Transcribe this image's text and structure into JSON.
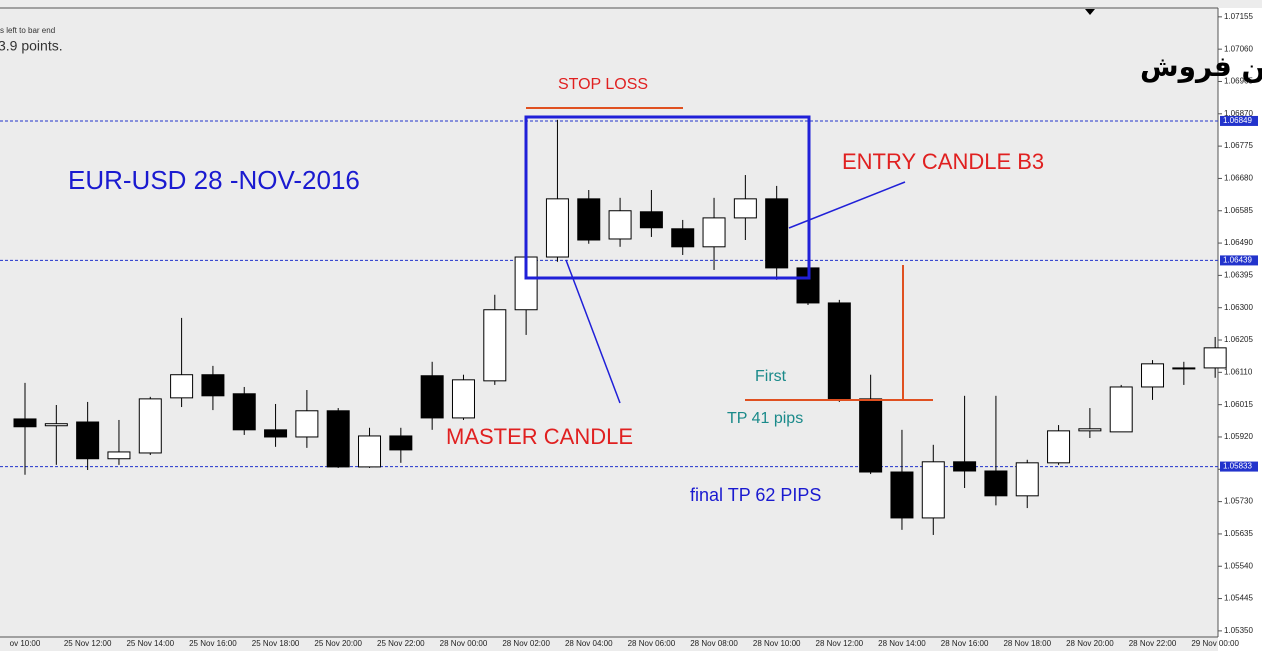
{
  "chart_data": {
    "type": "candlestick",
    "title": "یورو دلار- پوزیشن فروش",
    "annotations": {
      "info_small": "s left to bar end",
      "info_points": "3.9 points.",
      "pair": "EUR-USD 28 -NOV-2016",
      "stop_loss": "STOP LOSS",
      "entry": "ENTRY CANDLE B3",
      "master": "MASTER CANDLE",
      "first": "First",
      "tp1": "TP 41 pips",
      "tp2": "final TP 62 PIPS"
    },
    "categories": [
      "ov 10:00",
      null,
      "25 Nov 12:00",
      null,
      "25 Nov 14:00",
      null,
      "25 Nov 16:00",
      null,
      "25 Nov 18:00",
      null,
      "25 Nov 20:00",
      null,
      "25 Nov 22:00",
      null,
      "28 Nov 00:00",
      null,
      "28 Nov 02:00",
      null,
      "28 Nov 04:00",
      null,
      "28 Nov 06:00",
      null,
      "28 Nov 08:00",
      null,
      "28 Nov 10:00",
      null,
      "28 Nov 12:00",
      null,
      "28 Nov 14:00",
      null,
      "28 Nov 16:00",
      null,
      "28 Nov 18:00",
      null,
      "28 Nov 20:00",
      null,
      "28 Nov 22:00",
      null,
      "29 Nov 00:00"
    ],
    "open": [
      1.05973,
      1.05953,
      1.05964,
      1.05856,
      1.05873,
      1.06035,
      1.06103,
      1.06047,
      1.05941,
      1.0592,
      1.05997,
      1.05832,
      1.05923,
      1.061,
      1.05976,
      1.06085,
      1.06294,
      1.06449,
      1.0662,
      1.06502,
      1.06582,
      1.06532,
      1.06479,
      1.06564,
      1.0662,
      1.06417,
      1.06314,
      1.06032,
      1.05817,
      1.05682,
      1.05847,
      1.0582,
      1.05747,
      1.05844,
      1.05938,
      1.05935,
      1.06067,
      1.06123,
      1.06123
    ],
    "high": [
      1.06079,
      1.06014,
      1.06023,
      1.0597,
      1.06038,
      1.0627,
      1.06129,
      1.06067,
      1.06017,
      1.06058,
      1.06005,
      1.05947,
      1.05947,
      1.06141,
      1.06103,
      1.06338,
      1.0647,
      1.06852,
      1.06646,
      1.06623,
      1.06646,
      1.06558,
      1.06623,
      1.0669,
      1.06658,
      1.06423,
      1.06323,
      1.06103,
      1.05941,
      1.05897,
      1.06041,
      1.06041,
      1.05853,
      1.05955,
      1.06005,
      1.06073,
      1.06146,
      1.06141,
      1.06214
    ],
    "low": [
      1.05809,
      1.05838,
      1.05823,
      1.05838,
      1.05867,
      1.06008,
      1.05999,
      1.05926,
      1.05891,
      1.05888,
      1.05829,
      1.05829,
      1.05844,
      1.05941,
      1.0597,
      1.06073,
      1.0622,
      1.06435,
      1.06488,
      1.06479,
      1.06508,
      1.06455,
      1.06411,
      1.06499,
      1.06382,
      1.06308,
      1.06023,
      1.05811,
      1.05647,
      1.05632,
      1.0577,
      1.05719,
      1.05711,
      1.05838,
      1.05917,
      1.05935,
      1.06029,
      1.06073,
      1.06094
    ],
    "close": [
      1.0595,
      1.05959,
      1.05856,
      1.05876,
      1.06032,
      1.06103,
      1.06041,
      1.05941,
      1.0592,
      1.05997,
      1.05832,
      1.05923,
      1.05882,
      1.05976,
      1.06088,
      1.06294,
      1.06449,
      1.0662,
      1.06499,
      1.06585,
      1.06535,
      1.06479,
      1.06564,
      1.0662,
      1.06417,
      1.06314,
      1.06032,
      1.05817,
      1.05682,
      1.05847,
      1.0582,
      1.05747,
      1.05844,
      1.05938,
      1.05944,
      1.06067,
      1.06135,
      1.0612,
      1.06182
    ],
    "up_color": "#ffffff",
    "down_color": "#000000",
    "price_lines": [
      1.06849,
      1.06439,
      1.05833
    ],
    "price_line_color": "#2233cc",
    "ylim": [
      1.05332,
      1.07181
    ],
    "yticks": [
      1.07155,
      {
        "value": 1.0706,
        "label": "1.07060"
      },
      1.06965,
      {
        "value": 1.0687,
        "label": "1.06870"
      },
      1.06775,
      {
        "value": 1.0668,
        "label": "1.06680"
      },
      1.06585,
      {
        "value": 1.0649,
        "label": "1.06490"
      },
      1.06395,
      {
        "value": 1.063,
        "label": "1.06300"
      },
      1.06205,
      {
        "value": 1.0611,
        "label": "1.06110"
      },
      1.06015,
      {
        "value": 1.0592,
        "label": "1.05920"
      },
      1.05825,
      {
        "value": 1.0573,
        "label": "1.05730"
      },
      1.05635,
      {
        "value": 1.0554,
        "label": "1.05540"
      },
      1.05445,
      {
        "value": 1.0535,
        "label": "1.05350"
      }
    ]
  }
}
